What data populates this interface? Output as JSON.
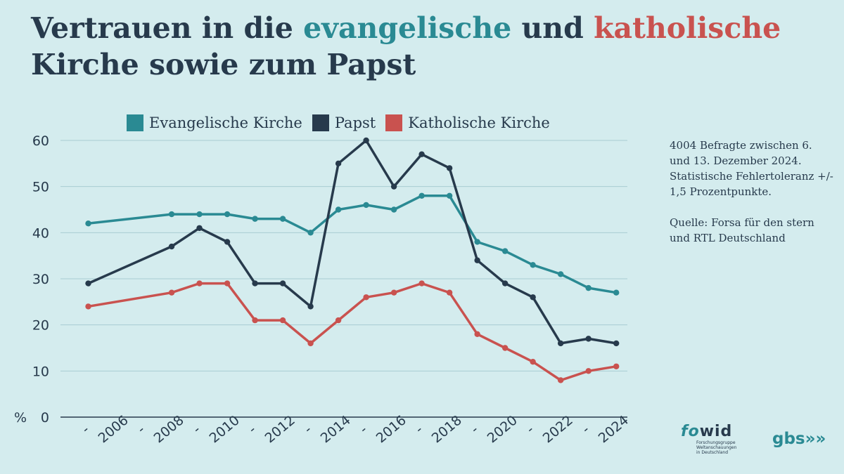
{
  "title": {
    "part1": "Vertrauen in die ",
    "part2": "evangelische",
    "part3": " und ",
    "part4": "katholische",
    "part5": "Kirche sowie zum Papst"
  },
  "note": {
    "line1": "4004 Befragte zwischen 6. und 13. Dezember 2024. Statistische Fehlertoleranz +/- 1,5 Prozentpunkte.",
    "line2": "Quelle: Forsa für den stern und RTL Deutschland"
  },
  "logos": {
    "fowid_a": "fo",
    "fowid_b": "wid",
    "fowid_sub": "Forschungsgruppe Weltanschauungen in Deutschland",
    "gbs": "gbs»»"
  },
  "colors": {
    "evangelisch": "#2a8a93",
    "papst": "#273a4c",
    "katholisch": "#c9524f",
    "background": "#d4ecee"
  },
  "chart_data": {
    "type": "line",
    "ylabel": "%",
    "ylim": [
      0,
      60
    ],
    "yticks": [
      0,
      10,
      20,
      30,
      40,
      50,
      60
    ],
    "grid": true,
    "legend_position": "top",
    "x_tick_labels": [
      "-",
      "2006",
      "-",
      "2008",
      "-",
      "2010",
      "-",
      "2012",
      "-",
      "2014",
      "-",
      "2016",
      "-",
      "2018",
      "-",
      "2020",
      "-",
      "2022",
      "-",
      "2024"
    ],
    "x": [
      2005,
      2008,
      2009,
      2010,
      2011,
      2012,
      2013,
      2014,
      2015,
      2016,
      2017,
      2018,
      2019,
      2020,
      2021,
      2022,
      2023,
      2024
    ],
    "series": [
      {
        "name": "Evangelische Kirche",
        "color": "#2a8a93",
        "values": [
          42,
          44,
          44,
          44,
          43,
          43,
          40,
          45,
          46,
          45,
          48,
          48,
          38,
          36,
          33,
          31,
          28,
          27
        ]
      },
      {
        "name": "Papst",
        "color": "#273a4c",
        "values": [
          29,
          37,
          41,
          38,
          29,
          29,
          24,
          55,
          60,
          50,
          57,
          54,
          34,
          29,
          26,
          16,
          17,
          16
        ]
      },
      {
        "name": "Katholische Kirche",
        "color": "#c9524f",
        "values": [
          24,
          27,
          29,
          29,
          21,
          21,
          16,
          21,
          26,
          27,
          29,
          27,
          18,
          15,
          12,
          8,
          10,
          11
        ]
      }
    ]
  }
}
